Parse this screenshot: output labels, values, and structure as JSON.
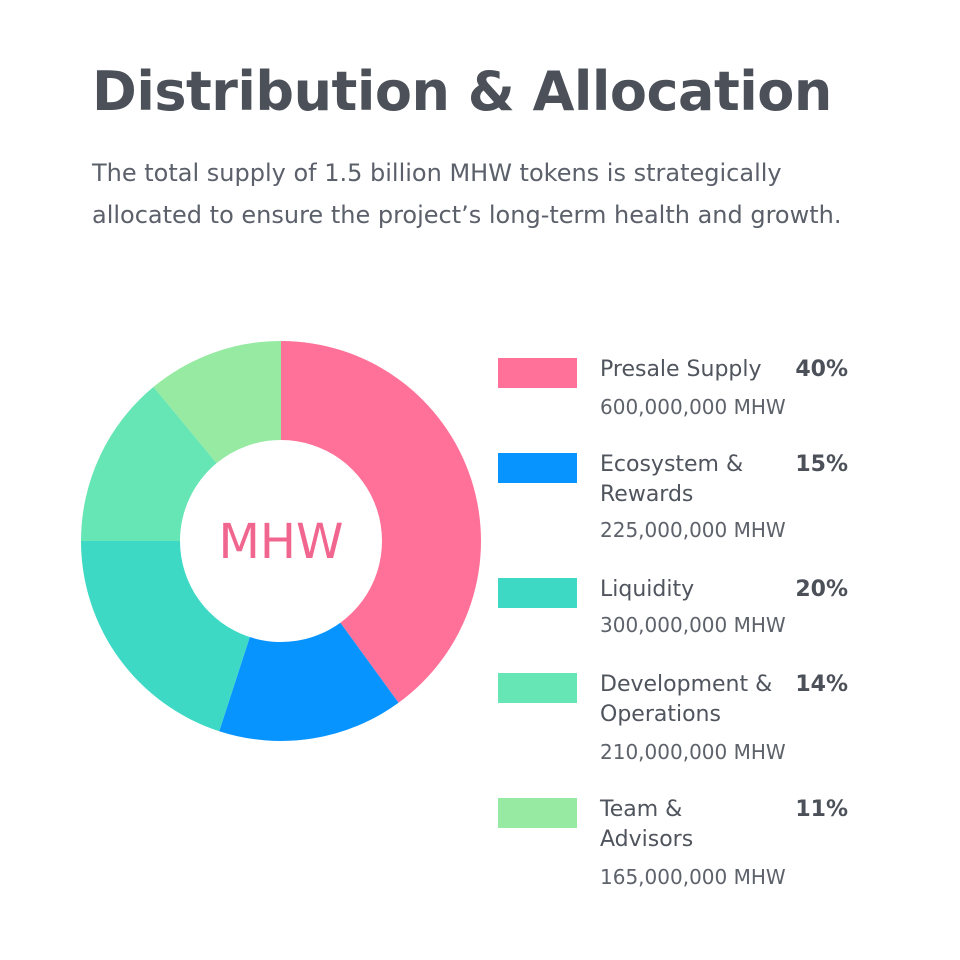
{
  "title": "Distribution & Allocation",
  "subtitle": "The total supply of 1.5 billion MHW tokens is strategically allocated to ensure the project’s long-term health and growth.",
  "chart_data": {
    "type": "pie",
    "center_label": "MHW",
    "legend_position": "right",
    "slices": [
      {
        "label": "Presale Supply",
        "percent": 40,
        "percent_label": "40%",
        "amount": "600,000,000 MHW",
        "color": "#ff7199"
      },
      {
        "label": "Ecosystem & Rewards",
        "percent": 15,
        "percent_label": "15%",
        "amount": "225,000,000 MHW",
        "color": "#0894ff"
      },
      {
        "label": "Liquidity",
        "percent": 20,
        "percent_label": "20%",
        "amount": "300,000,000 MHW",
        "color": "#3dd9c5"
      },
      {
        "label": "Development & Operations",
        "percent": 14,
        "percent_label": "14%",
        "amount": "210,000,000 MHW",
        "color": "#66e6b4"
      },
      {
        "label": "Team & Advisors",
        "percent": 11,
        "percent_label": "11%",
        "amount": "165,000,000 MHW",
        "color": "#96eaa2"
      }
    ]
  }
}
